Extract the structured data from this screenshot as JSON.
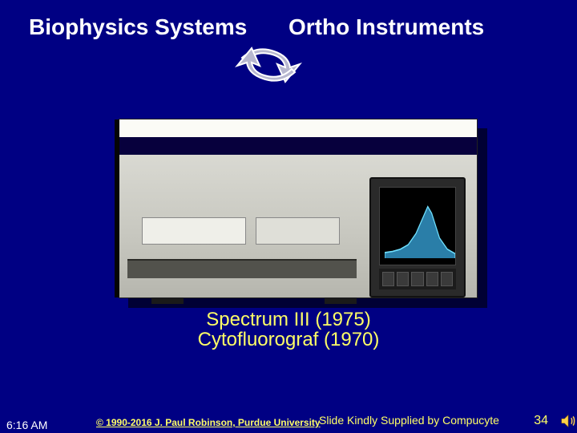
{
  "titles": {
    "left": "Biophysics Systems",
    "right": "Ortho Instruments"
  },
  "swirl": {
    "stroke": "#ffffff",
    "fill_shadow": "#a6a6c0"
  },
  "device": {
    "body_color": "#c6c6be",
    "gap_color": "#07003d",
    "monitor_case": "#2a2a2a",
    "screen_bg": "#000000",
    "chart": {
      "type": "area",
      "x": [
        0,
        10,
        20,
        30,
        40,
        50,
        55,
        60,
        70,
        80,
        90
      ],
      "y": [
        5,
        6,
        8,
        12,
        22,
        38,
        46,
        40,
        18,
        8,
        4
      ],
      "xlim": [
        0,
        90
      ],
      "ylim": [
        0,
        50
      ],
      "line_color": "#6fe0ff",
      "fill_color": "#2a7ea8",
      "background_color": "#000000"
    }
  },
  "caption": {
    "line1": "Spectrum III (1975)",
    "line2": "Cytofluorograf (1970)",
    "color": "#ffff66",
    "fontsize": 24
  },
  "footer": {
    "time": "6:16 AM",
    "copyright": "© 1990-2016 J. Paul Robinson, Purdue University",
    "credit": "Slide Kindly Supplied by Compucyte",
    "slide_number": "34"
  },
  "colors": {
    "slide_bg": "#000083",
    "title_text": "#ffffff",
    "accent_text": "#ffff66"
  }
}
